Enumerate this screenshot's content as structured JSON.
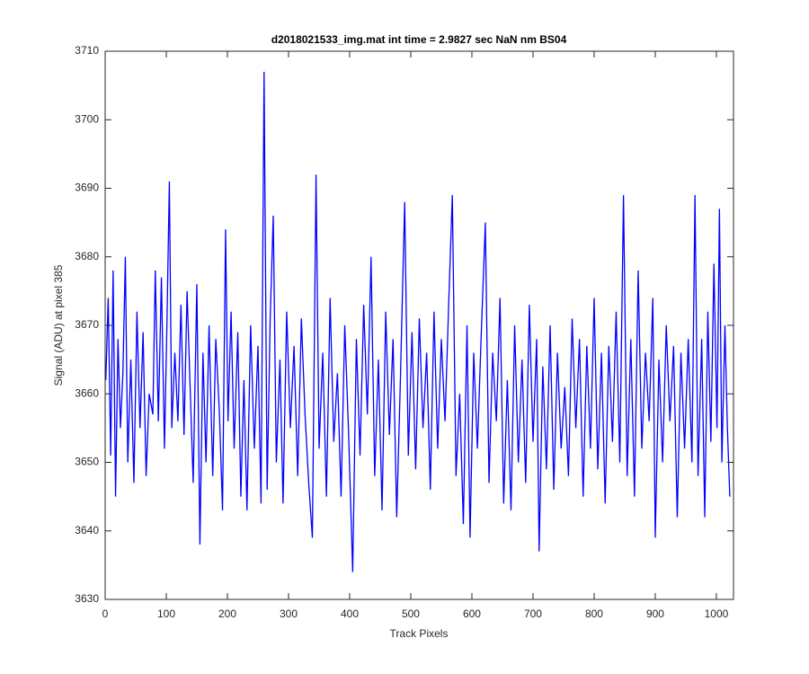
{
  "chart_data": {
    "type": "line",
    "title": "d2018021533_img.mat int time = 2.9827 sec  NaN nm BS04",
    "x_label": "Track Pixels",
    "y_label": "Signal (ADU) at pixel 385",
    "x": [
      1,
      5,
      9,
      13,
      17,
      21,
      25,
      29,
      33,
      37,
      42,
      47,
      52,
      57,
      62,
      67,
      72,
      78,
      82,
      87,
      92,
      97,
      101,
      105,
      109,
      114,
      119,
      124,
      129,
      134,
      139,
      144,
      150,
      155,
      160,
      165,
      170,
      176,
      181,
      187,
      192,
      197,
      201,
      206,
      211,
      217,
      222,
      227,
      232,
      238,
      244,
      250,
      255,
      260,
      265,
      270,
      275,
      280,
      286,
      291,
      297,
      303,
      309,
      315,
      321,
      327,
      333,
      339,
      345,
      350,
      356,
      362,
      368,
      374,
      380,
      386,
      392,
      398,
      405,
      411,
      417,
      423,
      429,
      435,
      441,
      447,
      453,
      459,
      465,
      471,
      477,
      483,
      490,
      496,
      502,
      508,
      514,
      520,
      526,
      532,
      538,
      544,
      550,
      556,
      562,
      568,
      574,
      580,
      586,
      592,
      597,
      603,
      609,
      615,
      622,
      628,
      634,
      640,
      646,
      652,
      658,
      664,
      670,
      676,
      682,
      688,
      694,
      700,
      706,
      710,
      716,
      722,
      728,
      734,
      740,
      746,
      752,
      758,
      764,
      770,
      776,
      782,
      788,
      794,
      800,
      806,
      812,
      818,
      824,
      830,
      836,
      842,
      848,
      854,
      860,
      866,
      872,
      878,
      884,
      890,
      896,
      900,
      906,
      912,
      918,
      924,
      930,
      936,
      942,
      948,
      954,
      960,
      965,
      970,
      976,
      981,
      986,
      991,
      996,
      1001,
      1005,
      1009,
      1014,
      1018,
      1022
    ],
    "series": [
      {
        "name": "Signal",
        "color": "#0000ff",
        "values": [
          3662,
          3674,
          3651,
          3678,
          3645,
          3668,
          3655,
          3663,
          3680,
          3650,
          3665,
          3647,
          3672,
          3655,
          3669,
          3648,
          3660,
          3657,
          3678,
          3656,
          3677,
          3652,
          3670,
          3691,
          3655,
          3666,
          3656,
          3673,
          3654,
          3675,
          3661,
          3647,
          3676,
          3638,
          3666,
          3650,
          3670,
          3648,
          3668,
          3657,
          3643,
          3684,
          3656,
          3672,
          3652,
          3669,
          3645,
          3662,
          3643,
          3670,
          3652,
          3667,
          3644,
          3707,
          3646,
          3671,
          3686,
          3650,
          3665,
          3644,
          3672,
          3655,
          3667,
          3648,
          3671,
          3657,
          3647,
          3639,
          3692,
          3652,
          3666,
          3645,
          3674,
          3653,
          3663,
          3645,
          3670,
          3655,
          3634,
          3668,
          3651,
          3673,
          3657,
          3680,
          3648,
          3665,
          3643,
          3672,
          3654,
          3668,
          3642,
          3662,
          3688,
          3651,
          3669,
          3649,
          3671,
          3655,
          3666,
          3646,
          3672,
          3652,
          3668,
          3656,
          3673,
          3689,
          3648,
          3660,
          3641,
          3670,
          3639,
          3666,
          3652,
          3668,
          3685,
          3647,
          3666,
          3656,
          3674,
          3644,
          3662,
          3643,
          3670,
          3650,
          3665,
          3647,
          3673,
          3653,
          3668,
          3637,
          3664,
          3649,
          3670,
          3646,
          3666,
          3652,
          3661,
          3648,
          3671,
          3655,
          3668,
          3645,
          3667,
          3652,
          3674,
          3649,
          3666,
          3644,
          3667,
          3653,
          3672,
          3650,
          3689,
          3648,
          3668,
          3645,
          3678,
          3652,
          3666,
          3656,
          3674,
          3639,
          3665,
          3650,
          3670,
          3656,
          3667,
          3642,
          3666,
          3652,
          3668,
          3650,
          3689,
          3648,
          3668,
          3642,
          3672,
          3653,
          3679,
          3655,
          3687,
          3650,
          3670,
          3655,
          3645
        ]
      }
    ],
    "xlim": [
      0,
      1028
    ],
    "ylim": [
      3630,
      3710
    ],
    "xticks": [
      0,
      100,
      200,
      300,
      400,
      500,
      600,
      700,
      800,
      900,
      1000
    ],
    "yticks": [
      3630,
      3640,
      3650,
      3660,
      3670,
      3680,
      3690,
      3700,
      3710
    ]
  }
}
